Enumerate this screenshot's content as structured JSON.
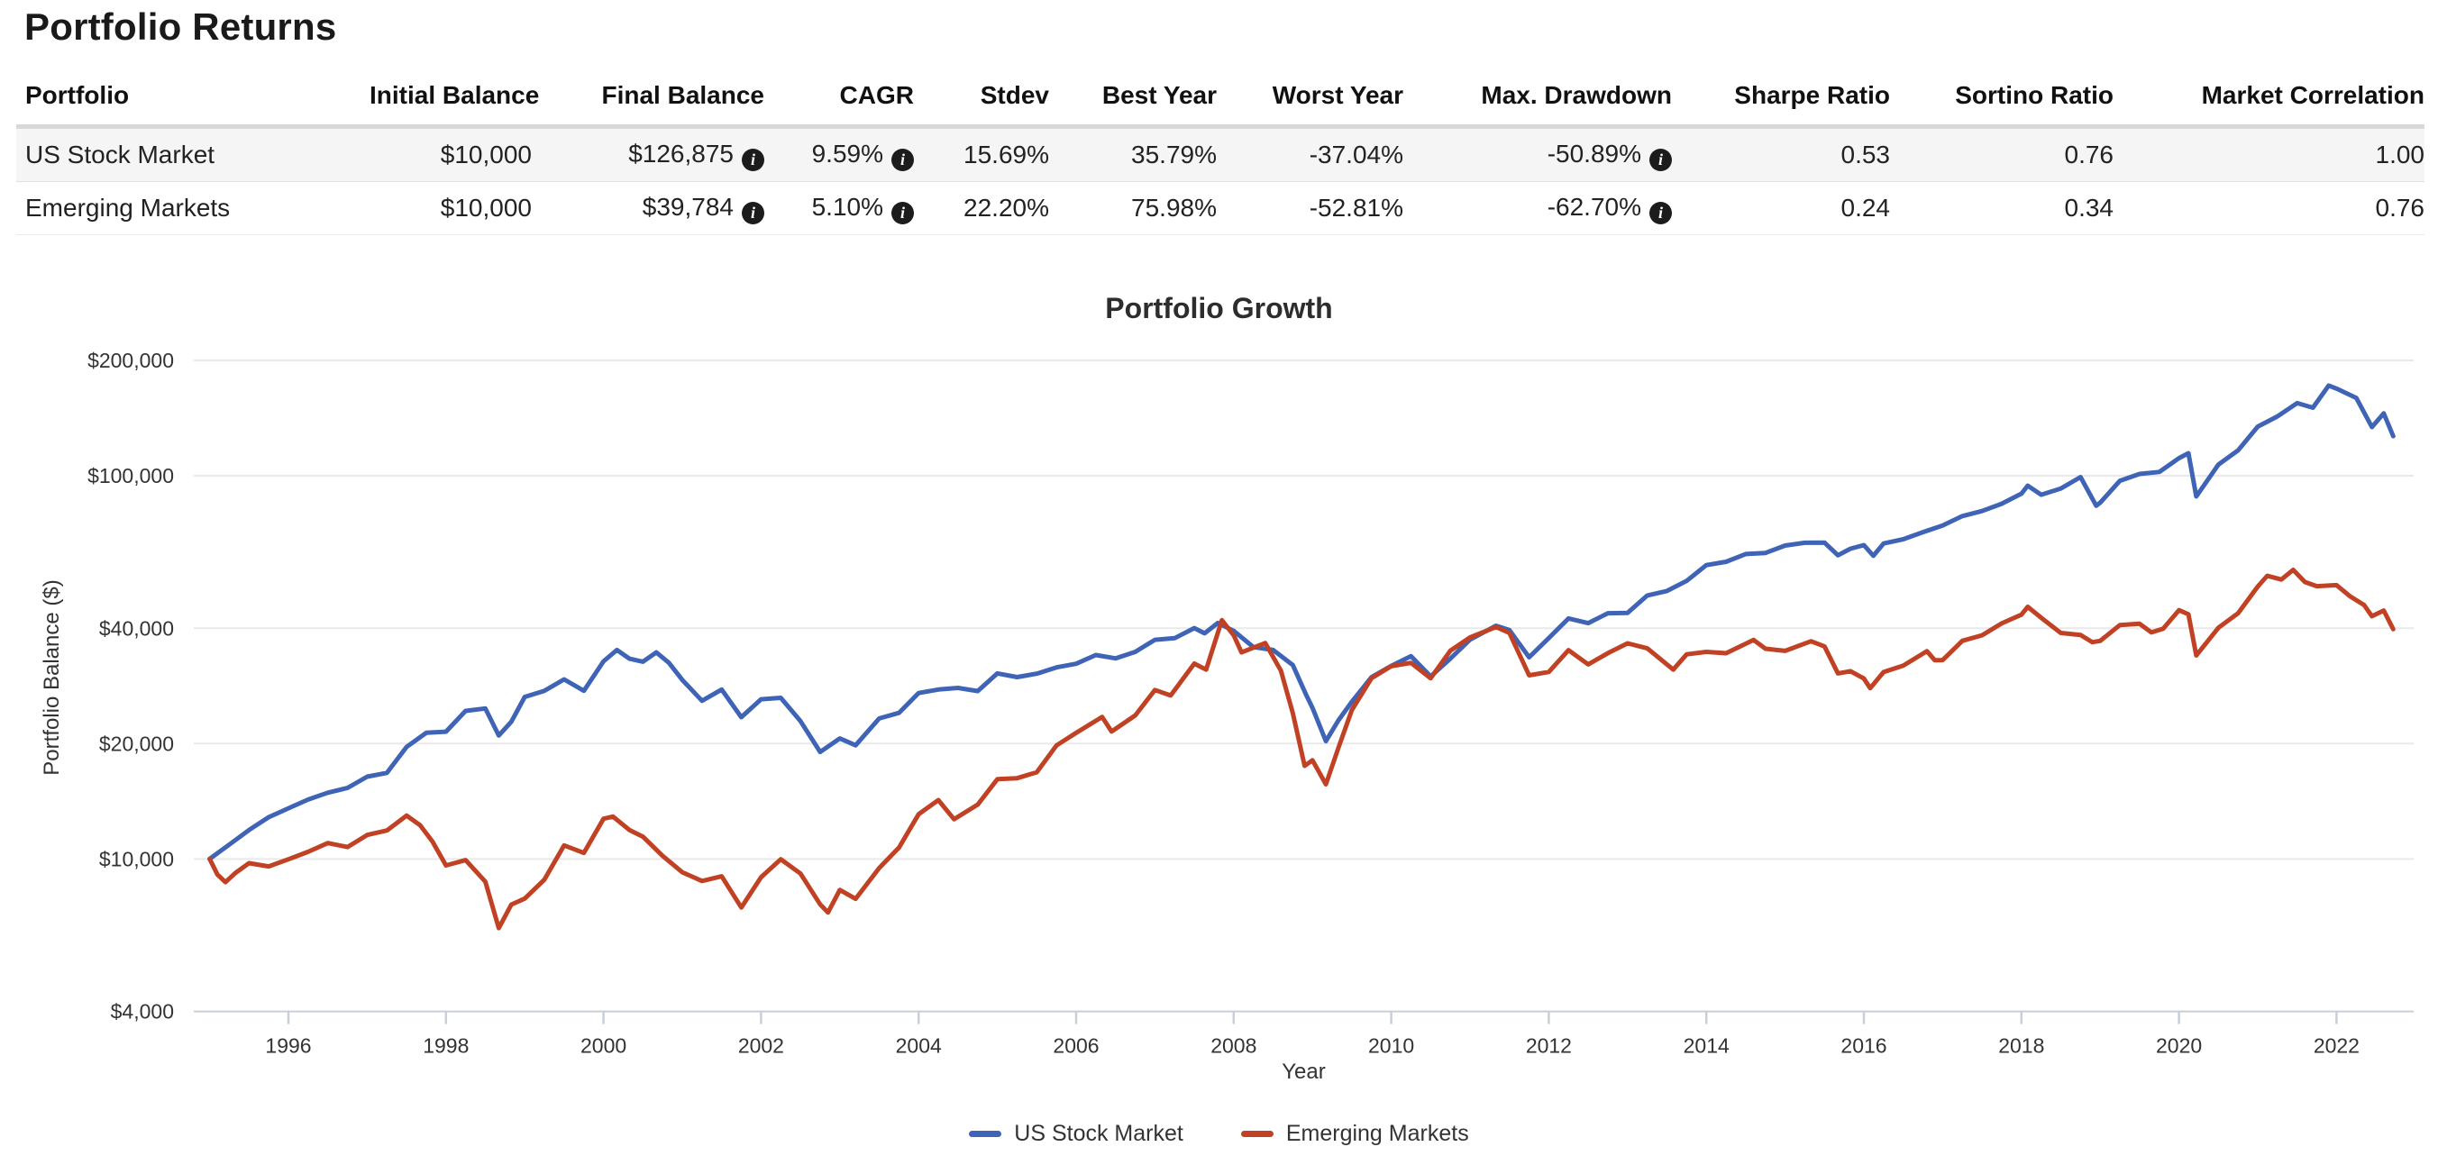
{
  "page": {
    "title": "Portfolio Returns"
  },
  "icons": {
    "info": "i"
  },
  "table": {
    "columns": [
      "Portfolio",
      "Initial Balance",
      "Final Balance",
      "CAGR",
      "Stdev",
      "Best Year",
      "Worst Year",
      "Max. Drawdown",
      "Sharpe Ratio",
      "Sortino Ratio",
      "Market Correlation"
    ],
    "rows": [
      [
        "US Stock Market",
        "$10,000",
        "$126,875",
        "9.59%",
        "15.69%",
        "35.79%",
        "-37.04%",
        "-50.89%",
        "0.53",
        "0.76",
        "1.00"
      ],
      [
        "Emerging Markets",
        "$10,000",
        "$39,784",
        "5.10%",
        "22.20%",
        "75.98%",
        "-52.81%",
        "-62.70%",
        "0.24",
        "0.34",
        "0.76"
      ]
    ]
  },
  "chart_data": {
    "type": "line",
    "title": "Portfolio Growth",
    "xlabel": "Year",
    "ylabel": "Portfolio Balance ($)",
    "y_scale": "log",
    "ylim": [
      4000,
      200000
    ],
    "xlim": [
      1995,
      2022.75
    ],
    "grid": true,
    "legend_position": "bottom",
    "y_ticks": [
      {
        "value": 200000,
        "label": "$200,000"
      },
      {
        "value": 100000,
        "label": "$100,000"
      },
      {
        "value": 40000,
        "label": "$40,000"
      },
      {
        "value": 20000,
        "label": "$20,000"
      },
      {
        "value": 10000,
        "label": "$10,000"
      },
      {
        "value": 4000,
        "label": "$4,000"
      }
    ],
    "x_ticks": [
      1996,
      1998,
      2000,
      2002,
      2004,
      2006,
      2008,
      2010,
      2012,
      2014,
      2016,
      2018,
      2020,
      2022
    ],
    "series": [
      {
        "name": "US Stock Market",
        "color": "#3F63B5",
        "points": [
          [
            1995.0,
            10000
          ],
          [
            1995.25,
            10900
          ],
          [
            1995.5,
            11900
          ],
          [
            1995.75,
            12850
          ],
          [
            1996.0,
            13560
          ],
          [
            1996.25,
            14290
          ],
          [
            1996.5,
            14890
          ],
          [
            1996.75,
            15320
          ],
          [
            1997.0,
            16400
          ],
          [
            1997.25,
            16770
          ],
          [
            1997.5,
            19600
          ],
          [
            1997.75,
            21340
          ],
          [
            1998.0,
            21480
          ],
          [
            1998.25,
            24340
          ],
          [
            1998.5,
            24700
          ],
          [
            1998.67,
            21000
          ],
          [
            1998.83,
            22800
          ],
          [
            1999.0,
            26480
          ],
          [
            1999.25,
            27460
          ],
          [
            1999.5,
            29420
          ],
          [
            1999.75,
            27460
          ],
          [
            2000.0,
            32780
          ],
          [
            2000.17,
            35100
          ],
          [
            2000.33,
            33300
          ],
          [
            2000.5,
            32710
          ],
          [
            2000.67,
            34600
          ],
          [
            2000.83,
            32500
          ],
          [
            2001.0,
            29320
          ],
          [
            2001.25,
            25870
          ],
          [
            2001.5,
            27670
          ],
          [
            2001.75,
            23440
          ],
          [
            2002.0,
            26100
          ],
          [
            2002.25,
            26330
          ],
          [
            2002.5,
            22900
          ],
          [
            2002.75,
            19020
          ],
          [
            2003.0,
            20630
          ],
          [
            2003.2,
            19800
          ],
          [
            2003.5,
            23260
          ],
          [
            2003.75,
            24050
          ],
          [
            2004.0,
            27100
          ],
          [
            2004.25,
            27680
          ],
          [
            2004.5,
            27950
          ],
          [
            2004.75,
            27430
          ],
          [
            2005.0,
            30490
          ],
          [
            2005.25,
            29820
          ],
          [
            2005.5,
            30440
          ],
          [
            2005.75,
            31620
          ],
          [
            2006.0,
            32310
          ],
          [
            2006.25,
            34050
          ],
          [
            2006.5,
            33370
          ],
          [
            2006.75,
            34700
          ],
          [
            2007.0,
            37320
          ],
          [
            2007.25,
            37690
          ],
          [
            2007.5,
            40030
          ],
          [
            2007.63,
            38800
          ],
          [
            2007.8,
            41300
          ],
          [
            2008.0,
            39370
          ],
          [
            2008.25,
            35710
          ],
          [
            2008.5,
            35110
          ],
          [
            2008.75,
            32060
          ],
          [
            2008.92,
            26800
          ],
          [
            2009.0,
            24790
          ],
          [
            2009.17,
            20290
          ],
          [
            2009.33,
            23000
          ],
          [
            2009.5,
            25720
          ],
          [
            2009.75,
            29820
          ],
          [
            2010.0,
            31900
          ],
          [
            2010.25,
            33810
          ],
          [
            2010.5,
            29940
          ],
          [
            2010.75,
            33320
          ],
          [
            2011.0,
            37350
          ],
          [
            2011.33,
            40600
          ],
          [
            2011.5,
            39570
          ],
          [
            2011.75,
            33600
          ],
          [
            2012.0,
            37710
          ],
          [
            2012.25,
            42430
          ],
          [
            2012.5,
            41240
          ],
          [
            2012.75,
            43790
          ],
          [
            2013.0,
            43840
          ],
          [
            2013.25,
            48710
          ],
          [
            2013.5,
            50050
          ],
          [
            2013.75,
            53180
          ],
          [
            2014.0,
            58460
          ],
          [
            2014.25,
            59630
          ],
          [
            2014.5,
            62490
          ],
          [
            2014.75,
            62900
          ],
          [
            2015.0,
            65730
          ],
          [
            2015.25,
            66850
          ],
          [
            2015.5,
            66920
          ],
          [
            2015.67,
            62000
          ],
          [
            2015.83,
            64500
          ],
          [
            2016.0,
            65920
          ],
          [
            2016.12,
            61800
          ],
          [
            2016.25,
            66560
          ],
          [
            2016.5,
            68290
          ],
          [
            2016.75,
            71250
          ],
          [
            2017.0,
            74180
          ],
          [
            2017.25,
            78480
          ],
          [
            2017.5,
            80870
          ],
          [
            2017.75,
            84530
          ],
          [
            2018.0,
            89800
          ],
          [
            2018.08,
            94200
          ],
          [
            2018.25,
            89230
          ],
          [
            2018.5,
            92620
          ],
          [
            2018.75,
            99190
          ],
          [
            2018.95,
            83500
          ],
          [
            2019.0,
            85080
          ],
          [
            2019.25,
            97030
          ],
          [
            2019.5,
            101100
          ],
          [
            2019.75,
            102300
          ],
          [
            2020.0,
            111160
          ],
          [
            2020.12,
            114500
          ],
          [
            2020.22,
            88290
          ],
          [
            2020.5,
            106900
          ],
          [
            2020.75,
            116500
          ],
          [
            2021.0,
            134360
          ],
          [
            2021.25,
            142900
          ],
          [
            2021.5,
            154700
          ],
          [
            2021.7,
            150500
          ],
          [
            2021.9,
            172000
          ],
          [
            2022.0,
            168850
          ],
          [
            2022.25,
            159700
          ],
          [
            2022.45,
            134000
          ],
          [
            2022.6,
            145500
          ],
          [
            2022.72,
            126875
          ]
        ]
      },
      {
        "name": "Emerging Markets",
        "color": "#C04124",
        "points": [
          [
            1995.0,
            10000
          ],
          [
            1995.1,
            9100
          ],
          [
            1995.2,
            8700
          ],
          [
            1995.33,
            9200
          ],
          [
            1995.5,
            9750
          ],
          [
            1995.75,
            9560
          ],
          [
            1996.0,
            9980
          ],
          [
            1996.25,
            10440
          ],
          [
            1996.5,
            11000
          ],
          [
            1996.75,
            10740
          ],
          [
            1997.0,
            11550
          ],
          [
            1997.25,
            11870
          ],
          [
            1997.5,
            12980
          ],
          [
            1997.67,
            12250
          ],
          [
            1997.83,
            11100
          ],
          [
            1998.0,
            9620
          ],
          [
            1998.25,
            9930
          ],
          [
            1998.5,
            8720
          ],
          [
            1998.67,
            6600
          ],
          [
            1998.83,
            7600
          ],
          [
            1999.0,
            7880
          ],
          [
            1999.25,
            8830
          ],
          [
            1999.5,
            10850
          ],
          [
            1999.75,
            10370
          ],
          [
            2000.0,
            12730
          ],
          [
            2000.12,
            12900
          ],
          [
            2000.33,
            11900
          ],
          [
            2000.5,
            11430
          ],
          [
            2000.75,
            10190
          ],
          [
            2001.0,
            9230
          ],
          [
            2001.25,
            8760
          ],
          [
            2001.5,
            9010
          ],
          [
            2001.75,
            7470
          ],
          [
            2002.0,
            8960
          ],
          [
            2002.25,
            9980
          ],
          [
            2002.5,
            9160
          ],
          [
            2002.75,
            7610
          ],
          [
            2002.85,
            7250
          ],
          [
            2003.0,
            8300
          ],
          [
            2003.2,
            7870
          ],
          [
            2003.5,
            9470
          ],
          [
            2003.75,
            10700
          ],
          [
            2004.0,
            13080
          ],
          [
            2004.25,
            14240
          ],
          [
            2004.45,
            12700
          ],
          [
            2004.75,
            13860
          ],
          [
            2005.0,
            16150
          ],
          [
            2005.25,
            16250
          ],
          [
            2005.5,
            16840
          ],
          [
            2005.75,
            19780
          ],
          [
            2006.0,
            21330
          ],
          [
            2006.33,
            23470
          ],
          [
            2006.45,
            21500
          ],
          [
            2006.75,
            23690
          ],
          [
            2007.0,
            27600
          ],
          [
            2007.2,
            26700
          ],
          [
            2007.5,
            32340
          ],
          [
            2007.65,
            31200
          ],
          [
            2007.85,
            42000
          ],
          [
            2008.0,
            38330
          ],
          [
            2008.1,
            34600
          ],
          [
            2008.4,
            36600
          ],
          [
            2008.6,
            31000
          ],
          [
            2008.75,
            24020
          ],
          [
            2008.9,
            17500
          ],
          [
            2009.0,
            18090
          ],
          [
            2009.17,
            15660
          ],
          [
            2009.33,
            19500
          ],
          [
            2009.5,
            24480
          ],
          [
            2009.75,
            29640
          ],
          [
            2010.0,
            31840
          ],
          [
            2010.25,
            32480
          ],
          [
            2010.5,
            29620
          ],
          [
            2010.75,
            34950
          ],
          [
            2011.0,
            37840
          ],
          [
            2011.33,
            40300
          ],
          [
            2011.5,
            38890
          ],
          [
            2011.75,
            30150
          ],
          [
            2012.0,
            30750
          ],
          [
            2012.25,
            35070
          ],
          [
            2012.5,
            32190
          ],
          [
            2012.75,
            34440
          ],
          [
            2013.0,
            36540
          ],
          [
            2013.25,
            35440
          ],
          [
            2013.58,
            31200
          ],
          [
            2013.75,
            34200
          ],
          [
            2014.0,
            34710
          ],
          [
            2014.25,
            34430
          ],
          [
            2014.6,
            37300
          ],
          [
            2014.75,
            35370
          ],
          [
            2015.0,
            34920
          ],
          [
            2015.33,
            37000
          ],
          [
            2015.5,
            35870
          ],
          [
            2015.67,
            30500
          ],
          [
            2015.83,
            30900
          ],
          [
            2016.0,
            29560
          ],
          [
            2016.08,
            27900
          ],
          [
            2016.25,
            30740
          ],
          [
            2016.5,
            31970
          ],
          [
            2016.8,
            34850
          ],
          [
            2016.9,
            33000
          ],
          [
            2017.0,
            33030
          ],
          [
            2017.25,
            37090
          ],
          [
            2017.5,
            38350
          ],
          [
            2017.75,
            41190
          ],
          [
            2018.0,
            43400
          ],
          [
            2018.08,
            45500
          ],
          [
            2018.25,
            42620
          ],
          [
            2018.5,
            38880
          ],
          [
            2018.75,
            38420
          ],
          [
            2018.9,
            36800
          ],
          [
            2019.0,
            37070
          ],
          [
            2019.25,
            40780
          ],
          [
            2019.5,
            41100
          ],
          [
            2019.65,
            39000
          ],
          [
            2019.8,
            39900
          ],
          [
            2020.0,
            44600
          ],
          [
            2020.12,
            43500
          ],
          [
            2020.22,
            33980
          ],
          [
            2020.5,
            40100
          ],
          [
            2020.75,
            43790
          ],
          [
            2021.0,
            51400
          ],
          [
            2021.12,
            54800
          ],
          [
            2021.3,
            53600
          ],
          [
            2021.45,
            56800
          ],
          [
            2021.6,
            52800
          ],
          [
            2021.75,
            51500
          ],
          [
            2022.0,
            51840
          ],
          [
            2022.17,
            48500
          ],
          [
            2022.35,
            46000
          ],
          [
            2022.45,
            43000
          ],
          [
            2022.6,
            44500
          ],
          [
            2022.72,
            39784
          ]
        ]
      }
    ]
  }
}
